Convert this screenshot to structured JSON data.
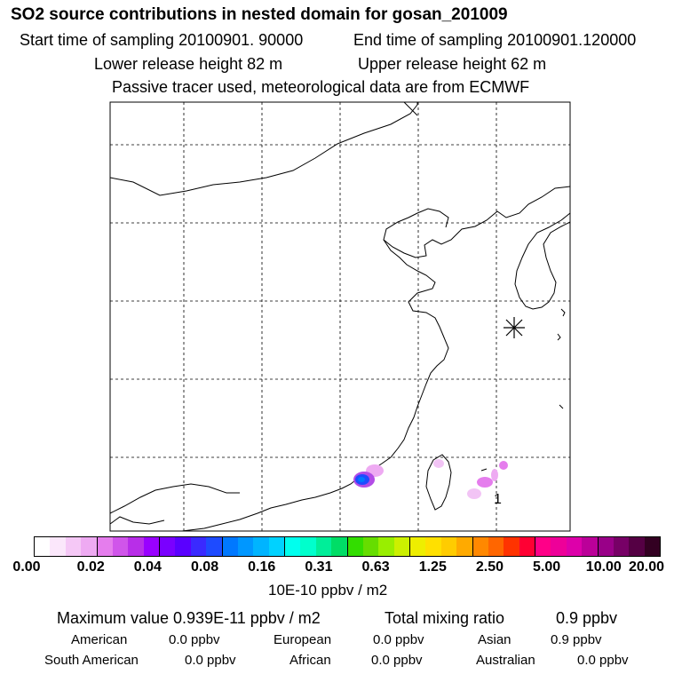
{
  "header": {
    "title": "SO2 source contributions in nested domain for gosan_201009",
    "start": "Start time of sampling 20100901. 90000",
    "end": "End time of sampling 20100901.120000",
    "lower": "Lower release height   82 m",
    "upper": "Upper release height   62 m",
    "note": "Passive tracer used, meteorological data are from ECMWF"
  },
  "map": {
    "marker_label": "1",
    "station_marker": "asterisk",
    "colors": {
      "coast": "#000000",
      "grid": "#000000",
      "plume_low": "#e9a6f0",
      "plume_mid": "#b24ce6",
      "plume_high": "#1e4bff"
    }
  },
  "colorbar": {
    "colors": [
      "#ffffff",
      "#fbe7fb",
      "#f5c8f6",
      "#eeaaf2",
      "#e57ded",
      "#d055ea",
      "#b82ee8",
      "#9900ff",
      "#7a00ff",
      "#5a00ff",
      "#3a2aff",
      "#1e4bff",
      "#0078ff",
      "#0097ff",
      "#00b4ff",
      "#00d2ff",
      "#00ffee",
      "#00ffcc",
      "#00ee99",
      "#00dd66",
      "#33dd00",
      "#66dd00",
      "#99ee00",
      "#ccf000",
      "#eeee00",
      "#ffe000",
      "#ffcc00",
      "#ffaa00",
      "#ff8800",
      "#ff6600",
      "#ff3300",
      "#ff0033",
      "#ff0088",
      "#ee0099",
      "#dd00aa",
      "#bb0099",
      "#990088",
      "#770066",
      "#550044",
      "#330022"
    ],
    "ticks": [
      "0.00",
      "0.02",
      "0.04",
      "0.08",
      "0.16",
      "0.31",
      "0.63",
      "1.25",
      "2.50",
      "5.00",
      "10.00",
      "20.00"
    ],
    "units": "10E-10 ppbv / m2"
  },
  "summary": {
    "max": "Maximum value  0.939E-11 ppbv / m2",
    "total_label": "Total mixing ratio",
    "total_value": "0.9 ppbv",
    "regions": [
      {
        "name": "American",
        "value": "0.0 ppbv"
      },
      {
        "name": "European",
        "value": "0.0 ppbv"
      },
      {
        "name": "Asian",
        "value": "0.9 ppbv"
      },
      {
        "name": "South American",
        "value": "0.0 ppbv"
      },
      {
        "name": "African",
        "value": "0.0 ppbv"
      },
      {
        "name": "Australian",
        "value": "0.0 ppbv"
      }
    ]
  }
}
